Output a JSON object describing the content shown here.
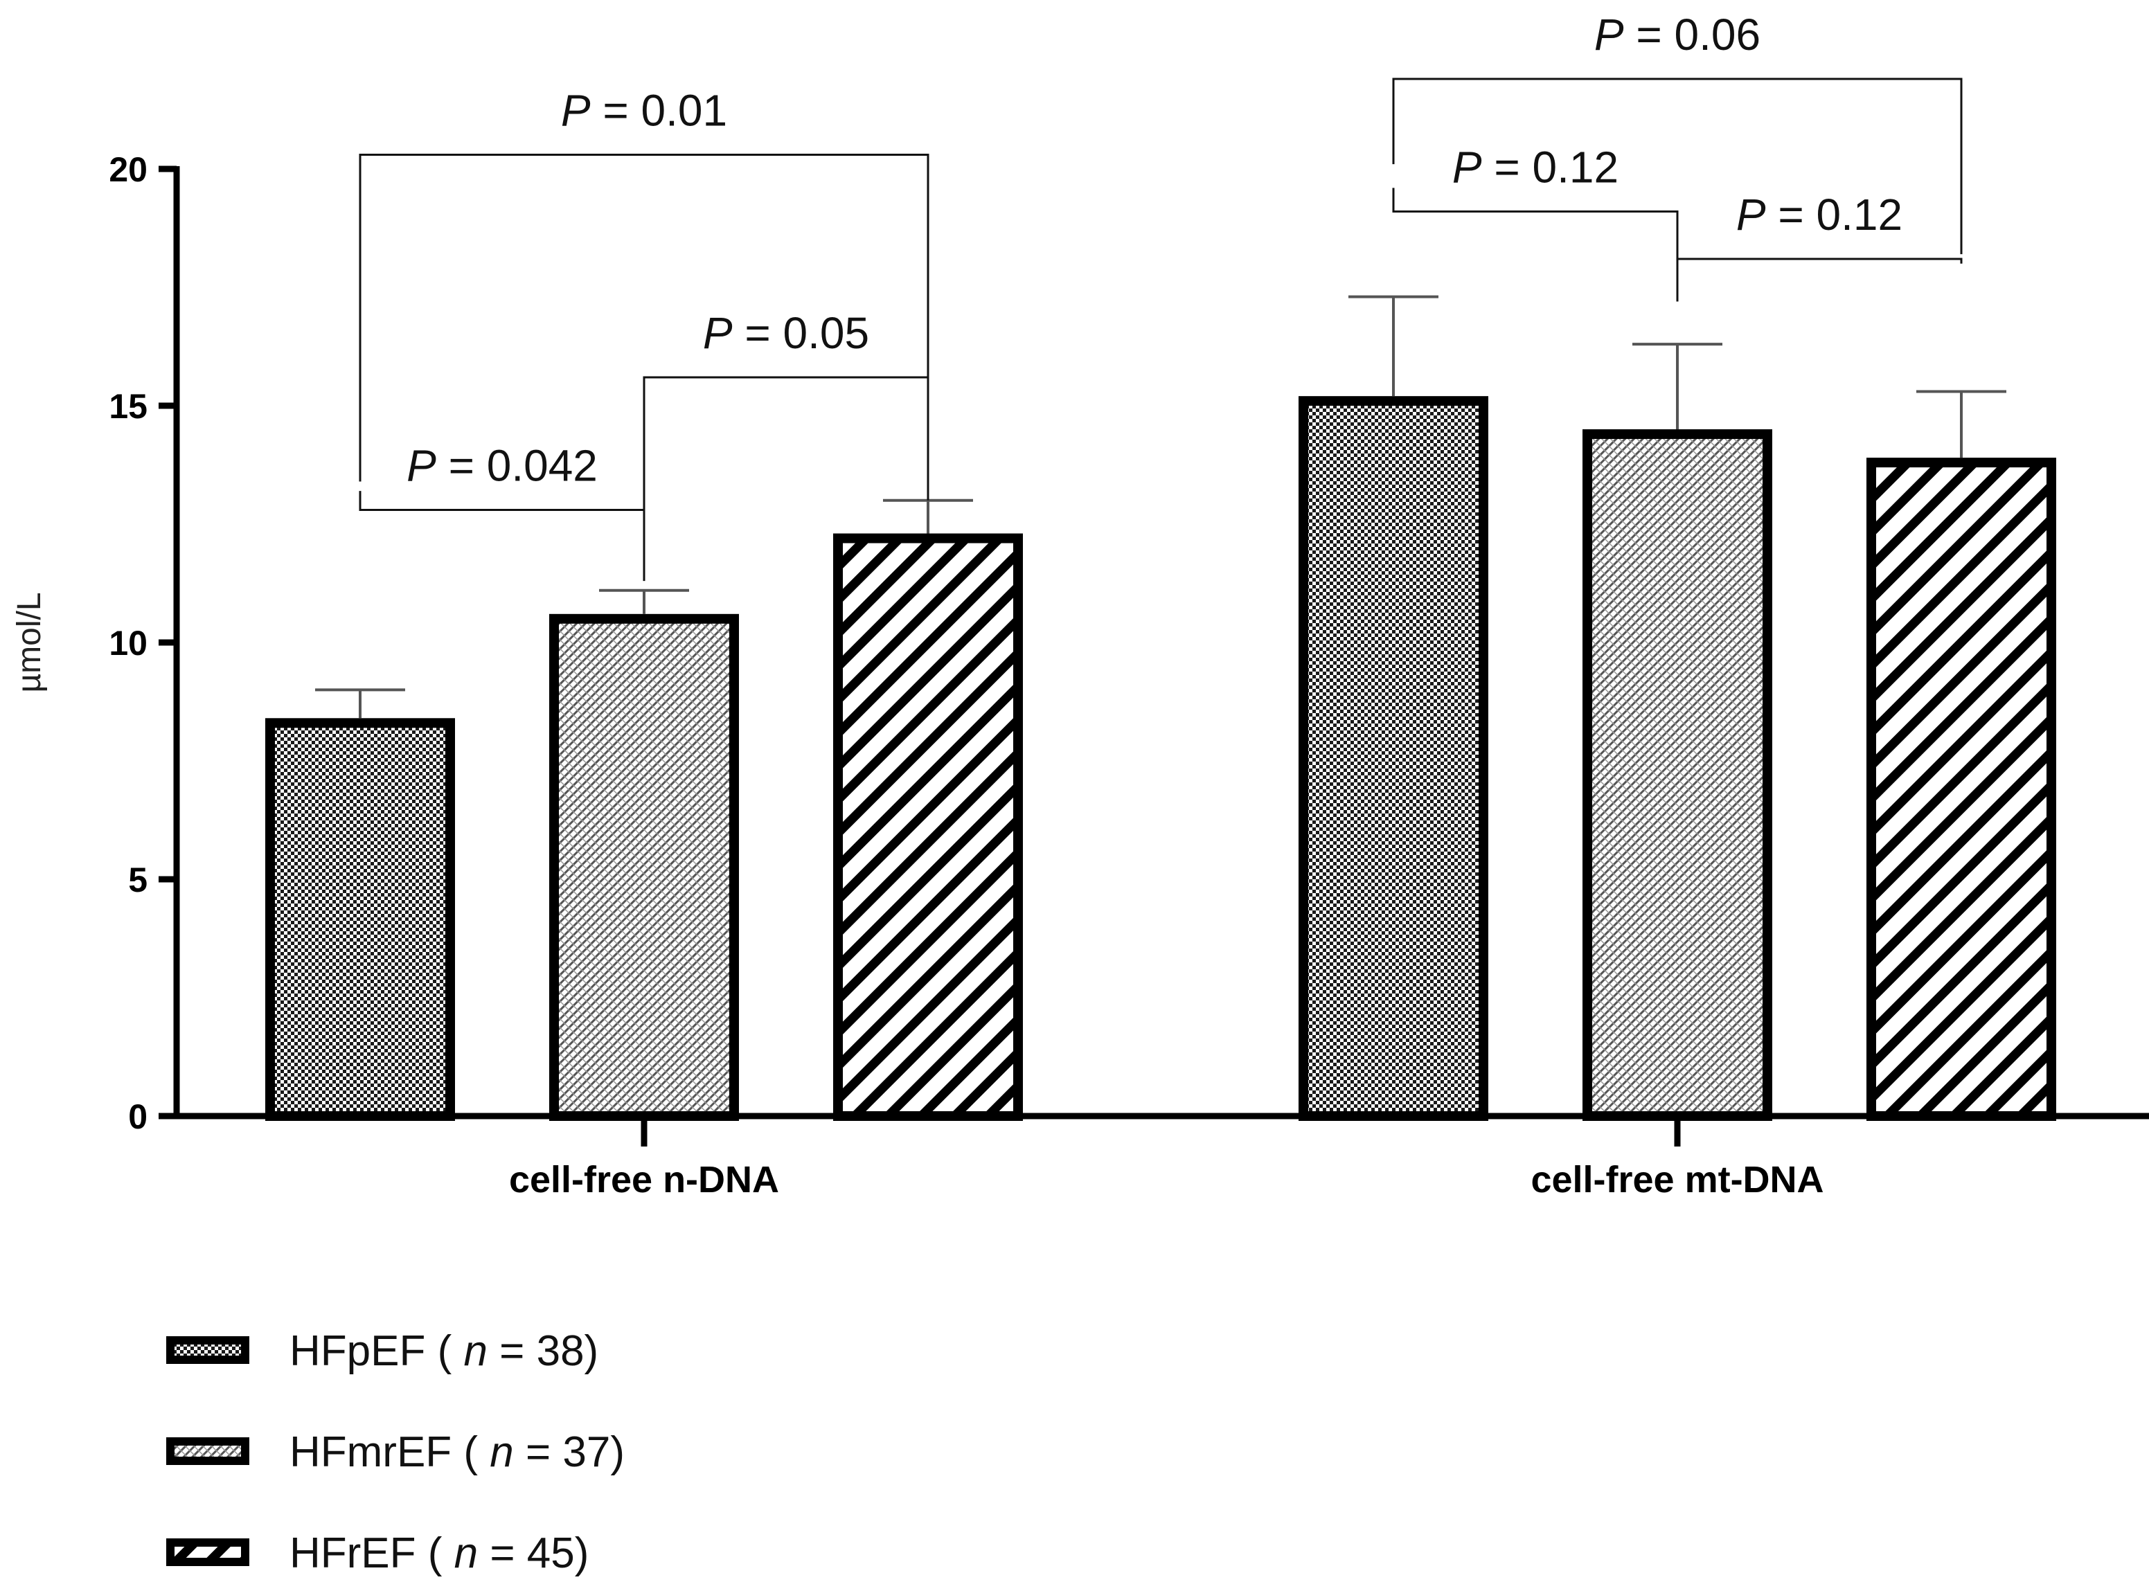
{
  "chart_data": {
    "type": "bar",
    "ylabel": "µmol/L",
    "ylim": [
      0,
      20
    ],
    "yticks": [
      0,
      5,
      10,
      15,
      20
    ],
    "categories": [
      "cell-free n-DNA",
      "cell-free mt-DNA"
    ],
    "series": [
      {
        "name": "HFpEF",
        "n_label": "n",
        "n_value": "38",
        "pattern": "checker",
        "values": [
          8.3,
          15.1
        ],
        "errors": [
          0.7,
          2.2
        ]
      },
      {
        "name": "HFmrEF",
        "n_label": "n",
        "n_value": "37",
        "pattern": "diag-fine",
        "values": [
          10.5,
          14.4
        ],
        "errors": [
          0.6,
          1.9
        ]
      },
      {
        "name": "HFrEF",
        "n_label": "n",
        "n_value": "45",
        "pattern": "diag-wide",
        "values": [
          12.2,
          13.8
        ],
        "errors": [
          0.8,
          1.5
        ]
      }
    ],
    "annotations": [
      {
        "cat": 0,
        "from": 0,
        "to": 1,
        "p_prefix": "P",
        "p_value": "= 0.042"
      },
      {
        "cat": 0,
        "from": 1,
        "to": 2,
        "p_prefix": "P",
        "p_value": "= 0.05"
      },
      {
        "cat": 0,
        "from": 0,
        "to": 2,
        "p_prefix": "P",
        "p_value": "= 0.01"
      },
      {
        "cat": 1,
        "from": 0,
        "to": 1,
        "p_prefix": "P",
        "p_value": "= 0.12"
      },
      {
        "cat": 1,
        "from": 1,
        "to": 2,
        "p_prefix": "P",
        "p_value": "= 0.12"
      },
      {
        "cat": 1,
        "from": 0,
        "to": 2,
        "p_prefix": "P",
        "p_value": "= 0.06"
      }
    ],
    "legend_position": "bottom-left"
  }
}
